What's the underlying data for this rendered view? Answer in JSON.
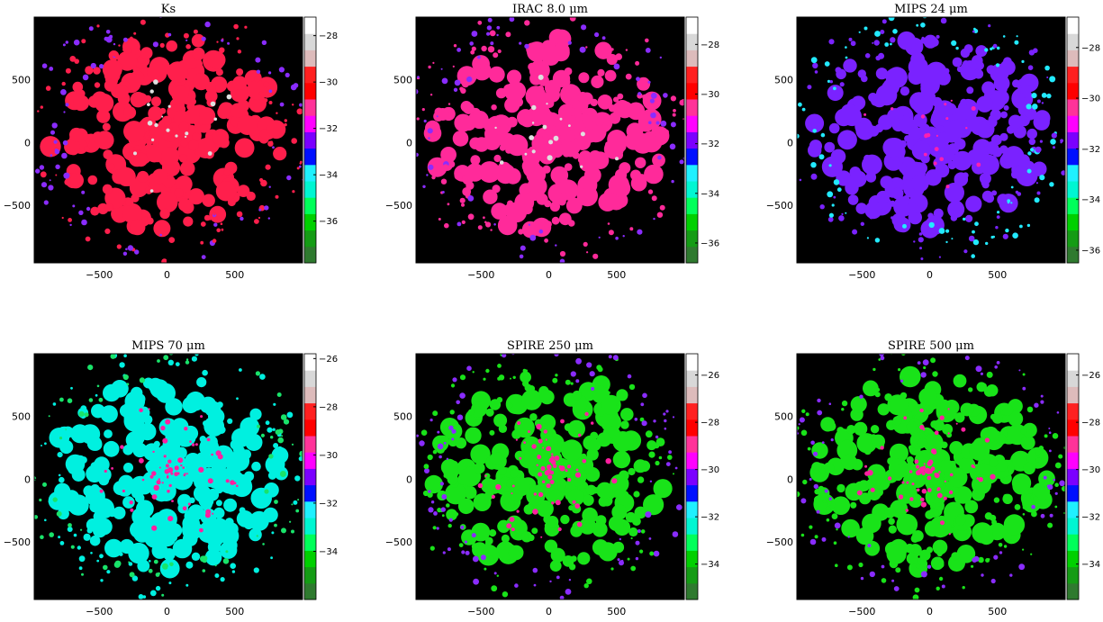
{
  "chart_data": [
    {
      "type": "heatmap",
      "title": "Ks",
      "xticks": [
        "−500",
        "0",
        "500"
      ],
      "yticks": [
        "500",
        "0",
        "−500"
      ],
      "xlim": [
        -980,
        1000
      ],
      "ylim": [
        -960,
        1000
      ],
      "colorbar": {
        "range": [
          -37.8,
          -27.2
        ],
        "ticks": [
          {
            "v": -28,
            "label": "−28"
          },
          {
            "v": -30,
            "label": "−30"
          },
          {
            "v": -32,
            "label": "−32"
          },
          {
            "v": -34,
            "label": "−34"
          },
          {
            "v": -36,
            "label": "−36"
          }
        ]
      },
      "dominant_color": "#ff1f4c"
    },
    {
      "type": "heatmap",
      "title": "IRAC 8.0 μm",
      "xticks": [
        "−500",
        "0",
        "500"
      ],
      "yticks": [
        "500",
        "0",
        "−500"
      ],
      "xlim": [
        -980,
        1000
      ],
      "ylim": [
        -960,
        1000
      ],
      "colorbar": {
        "range": [
          -36.8,
          -26.9
        ],
        "ticks": [
          {
            "v": -28,
            "label": "−28"
          },
          {
            "v": -30,
            "label": "−30"
          },
          {
            "v": -32,
            "label": "−32"
          },
          {
            "v": -34,
            "label": "−34"
          },
          {
            "v": -36,
            "label": "−36"
          }
        ]
      },
      "dominant_color": "#ff2a9a"
    },
    {
      "type": "heatmap",
      "title": "MIPS 24 μm",
      "xticks": [
        "−500",
        "0",
        "500"
      ],
      "yticks": [
        "500",
        "0",
        "−500"
      ],
      "xlim": [
        -980,
        1000
      ],
      "ylim": [
        -960,
        1000
      ],
      "colorbar": {
        "range": [
          -36.5,
          -26.8
        ],
        "ticks": [
          {
            "v": -28,
            "label": "−28"
          },
          {
            "v": -30,
            "label": "−30"
          },
          {
            "v": -32,
            "label": "−32"
          },
          {
            "v": -34,
            "label": "−34"
          },
          {
            "v": -36,
            "label": "−36"
          }
        ]
      },
      "dominant_color": "#7a22ff"
    },
    {
      "type": "heatmap",
      "title": "MIPS 70 μm",
      "xticks": [
        "−500",
        "0",
        "500"
      ],
      "yticks": [
        "500",
        "0",
        "−500"
      ],
      "xlim": [
        -980,
        1000
      ],
      "ylim": [
        -960,
        1000
      ],
      "colorbar": {
        "range": [
          -36,
          -25.8
        ],
        "ticks": [
          {
            "v": -26,
            "label": "−26"
          },
          {
            "v": -28,
            "label": "−28"
          },
          {
            "v": -30,
            "label": "−30"
          },
          {
            "v": -32,
            "label": "−32"
          },
          {
            "v": -34,
            "label": "−34"
          }
        ]
      },
      "dominant_color": "#00f0e0"
    },
    {
      "type": "heatmap",
      "title": "SPIRE 250 μm",
      "xticks": [
        "−500",
        "0",
        "500"
      ],
      "yticks": [
        "500",
        "0",
        "−500"
      ],
      "xlim": [
        -980,
        1000
      ],
      "ylim": [
        -960,
        1000
      ],
      "colorbar": {
        "range": [
          -35.5,
          -25.1
        ],
        "ticks": [
          {
            "v": -26,
            "label": "−26"
          },
          {
            "v": -28,
            "label": "−28"
          },
          {
            "v": -30,
            "label": "−30"
          },
          {
            "v": -32,
            "label": "−32"
          },
          {
            "v": -34,
            "label": "−34"
          }
        ]
      },
      "dominant_color": "#19e319"
    },
    {
      "type": "heatmap",
      "title": "SPIRE 500 μm",
      "xticks": [
        "−500",
        "0",
        "500"
      ],
      "yticks": [
        "500",
        "0",
        "−500"
      ],
      "xlim": [
        -980,
        1000
      ],
      "ylim": [
        -960,
        1000
      ],
      "colorbar": {
        "range": [
          -35.5,
          -25.1
        ],
        "ticks": [
          {
            "v": -26,
            "label": "−26"
          },
          {
            "v": -28,
            "label": "−28"
          },
          {
            "v": -30,
            "label": "−30"
          },
          {
            "v": -32,
            "label": "−32"
          },
          {
            "v": -34,
            "label": "−34"
          }
        ]
      },
      "dominant_color": "#19e319"
    }
  ],
  "colormap": [
    "#2f7a2f",
    "#159c15",
    "#00d000",
    "#00ff5a",
    "#00f6d2",
    "#1ff0ff",
    "#0010ff",
    "#7b00ff",
    "#ff00ff",
    "#ff3399",
    "#ff0000",
    "#ff2020",
    "#ddbbbb",
    "#d8d8d8",
    "#ffffff"
  ]
}
